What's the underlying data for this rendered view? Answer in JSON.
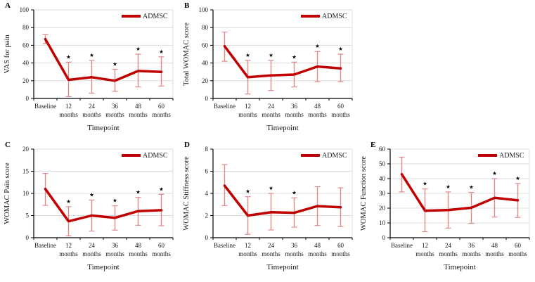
{
  "figure": {
    "legend_label": "ADMSC",
    "xlabel": "Timepoint",
    "categories": [
      "Baseline",
      "12 months",
      "24 months",
      "36 months",
      "48 months",
      "60 months"
    ],
    "colors": {
      "line": "#c00000",
      "error_bar": "#df8a8a",
      "grid": "#dcdcdc",
      "axis": "#000000",
      "text": "#1a1a1a",
      "star": "#000000",
      "background": "#ffffff"
    }
  },
  "chart_data": [
    {
      "panel": "A",
      "type": "line",
      "title": "",
      "ylabel": "VAS for pain",
      "xlabel": "Timepoint",
      "legend": [
        "ADMSC"
      ],
      "legend_position": "top-right",
      "grid": true,
      "categories": [
        "Baseline",
        "12 months",
        "24 months",
        "36 months",
        "48 months",
        "60 months"
      ],
      "ylim": [
        0,
        100
      ],
      "ytick_interval": 20,
      "series": [
        {
          "name": "ADMSC",
          "values": [
            67,
            21,
            24,
            20,
            31,
            30
          ],
          "error_low": [
            62,
            2,
            6,
            8,
            13,
            14
          ],
          "error_high": [
            72,
            41,
            43,
            33,
            50,
            47
          ]
        }
      ],
      "significance_stars": [
        false,
        true,
        true,
        true,
        true,
        true
      ]
    },
    {
      "panel": "B",
      "type": "line",
      "title": "",
      "ylabel": "Total WOMAC score",
      "xlabel": "Timepoint",
      "legend": [
        "ADMSC"
      ],
      "legend_position": "top-right",
      "grid": true,
      "categories": [
        "Baseline",
        "12 months",
        "24 months",
        "36 months",
        "48 months",
        "60 months"
      ],
      "ylim": [
        0,
        100
      ],
      "ytick_interval": 20,
      "series": [
        {
          "name": "ADMSC",
          "values": [
            59,
            24,
            26,
            27,
            36,
            34
          ],
          "error_low": [
            42,
            5,
            9,
            13,
            19,
            19
          ],
          "error_high": [
            75,
            43,
            43,
            41,
            53,
            50
          ]
        }
      ],
      "significance_stars": [
        false,
        true,
        true,
        true,
        true,
        true
      ]
    },
    {
      "panel": "C",
      "type": "line",
      "title": "",
      "ylabel": "WOMAC Pain score",
      "xlabel": "Timepoint",
      "legend": [
        "ADMSC"
      ],
      "legend_position": "top-right",
      "grid": true,
      "categories": [
        "Baseline",
        "12 months",
        "24 months",
        "36 months",
        "48 months",
        "60 months"
      ],
      "ylim": [
        0,
        20
      ],
      "ytick_interval": 5,
      "series": [
        {
          "name": "ADMSC",
          "values": [
            11,
            3.7,
            5,
            4.5,
            6,
            6.2
          ],
          "error_low": [
            7.3,
            0.4,
            1.5,
            1.7,
            2.8,
            2.7
          ],
          "error_high": [
            14.5,
            7,
            8.5,
            7.2,
            9.1,
            9.8
          ]
        }
      ],
      "significance_stars": [
        false,
        true,
        true,
        true,
        true,
        true
      ]
    },
    {
      "panel": "D",
      "type": "line",
      "title": "",
      "ylabel": "WOMAC Stiffness score",
      "xlabel": "Timepoint",
      "legend": [
        "ADMSC"
      ],
      "legend_position": "top-right",
      "grid": true,
      "categories": [
        "Baseline",
        "12 months",
        "24 months",
        "36 months",
        "48 months",
        "60 months"
      ],
      "ylim": [
        0,
        8
      ],
      "ytick_interval": 2,
      "series": [
        {
          "name": "ADMSC",
          "values": [
            4.7,
            2,
            2.3,
            2.25,
            2.85,
            2.75
          ],
          "error_low": [
            2.9,
            0.3,
            0.7,
            0.95,
            1.1,
            1
          ],
          "error_high": [
            6.6,
            3.7,
            4,
            3.6,
            4.6,
            4.5
          ]
        }
      ],
      "significance_stars": [
        false,
        true,
        true,
        true,
        false,
        false
      ]
    },
    {
      "panel": "E",
      "type": "line",
      "title": "",
      "ylabel": "WOMAC Function score",
      "xlabel": "Timepoint",
      "legend": [
        "ADMSC"
      ],
      "legend_position": "top-right",
      "grid": true,
      "categories": [
        "Baseline",
        "12 months",
        "24 months",
        "36 months",
        "48 months",
        "60 months"
      ],
      "ylim": [
        0,
        60
      ],
      "ytick_interval": 10,
      "series": [
        {
          "name": "ADMSC",
          "values": [
            43,
            18.3,
            18.7,
            20.3,
            27,
            25.3
          ],
          "error_low": [
            31,
            4,
            6.5,
            9.7,
            14,
            13.7
          ],
          "error_high": [
            54.5,
            33,
            31,
            30.7,
            40,
            36.7
          ]
        }
      ],
      "significance_stars": [
        false,
        true,
        true,
        true,
        true,
        true
      ]
    }
  ]
}
